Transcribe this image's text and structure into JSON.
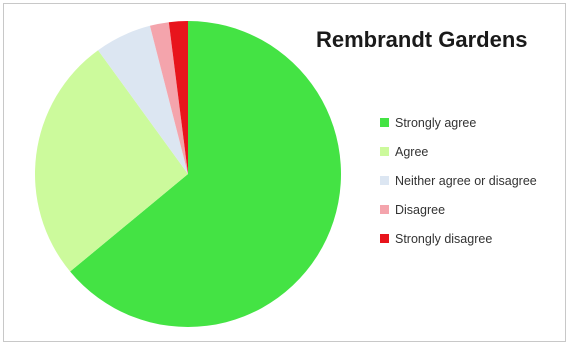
{
  "chart_data": {
    "type": "pie",
    "title": "Rembrandt Gardens",
    "legend_position": "right",
    "start_angle_deg": 0,
    "direction": "clockwise",
    "slices": [
      {
        "label": "Strongly agree",
        "value": 64,
        "color": "#44e344"
      },
      {
        "label": "Agree",
        "value": 26,
        "color": "#ccfa9c"
      },
      {
        "label": "Neither agree or disagree",
        "value": 6,
        "color": "#dce6f2"
      },
      {
        "label": "Disagree",
        "value": 2,
        "color": "#f4a4ac"
      },
      {
        "label": "Strongly disagree",
        "value": 2,
        "color": "#e8141c"
      }
    ]
  }
}
